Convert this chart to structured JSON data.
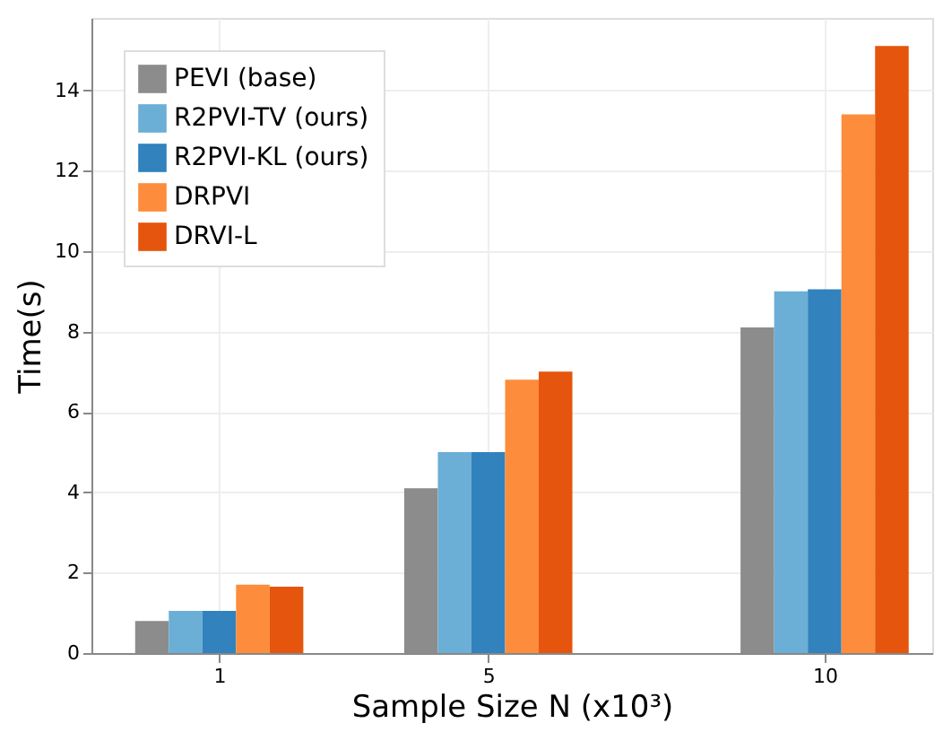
{
  "chart_data": {
    "type": "bar",
    "xlabel": "Sample Size N (x10³)",
    "ylabel": "Time(s)",
    "x": [
      1,
      5,
      10
    ],
    "xlim": [
      -0.9,
      11.6
    ],
    "xticks": [
      1,
      5,
      10
    ],
    "ylim": [
      0,
      15.8
    ],
    "yticks": [
      0,
      2,
      4,
      6,
      8,
      10,
      12,
      14
    ],
    "grid": true,
    "legend": "top left",
    "series": [
      {
        "name": "PEVI (base)",
        "color": "#8c8c8c",
        "values": [
          0.8,
          4.1,
          8.1
        ]
      },
      {
        "name": "R2PVI-TV (ours)",
        "color": "#6baed6",
        "values": [
          1.05,
          5.0,
          9.0
        ]
      },
      {
        "name": "R2PVI-KL (ours)",
        "color": "#3182bd",
        "values": [
          1.05,
          5.0,
          9.05
        ]
      },
      {
        "name": "DRPVI",
        "color": "#fd8d3c",
        "values": [
          1.7,
          6.8,
          13.4
        ]
      },
      {
        "name": "DRVI-L",
        "color": "#e6550d",
        "values": [
          1.65,
          7.0,
          15.1
        ]
      }
    ]
  }
}
